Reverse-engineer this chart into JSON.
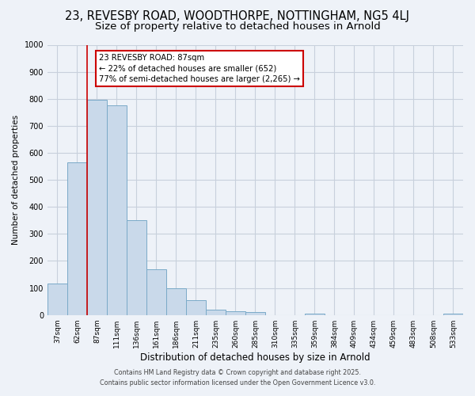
{
  "title": "23, REVESBY ROAD, WOODTHORPE, NOTTINGHAM, NG5 4LJ",
  "subtitle": "Size of property relative to detached houses in Arnold",
  "xlabel": "Distribution of detached houses by size in Arnold",
  "ylabel": "Number of detached properties",
  "bar_labels": [
    "37sqm",
    "62sqm",
    "87sqm",
    "111sqm",
    "136sqm",
    "161sqm",
    "186sqm",
    "211sqm",
    "235sqm",
    "260sqm",
    "285sqm",
    "310sqm",
    "335sqm",
    "359sqm",
    "384sqm",
    "409sqm",
    "434sqm",
    "459sqm",
    "483sqm",
    "508sqm",
    "533sqm"
  ],
  "bar_values": [
    115,
    565,
    795,
    775,
    350,
    170,
    100,
    55,
    20,
    15,
    10,
    0,
    0,
    5,
    0,
    0,
    0,
    0,
    0,
    0,
    5
  ],
  "bar_color": "#c9d9ea",
  "bar_edge_color": "#7aaac8",
  "vline_color": "#cc0000",
  "annotation_box_text": "23 REVESBY ROAD: 87sqm\n← 22% of detached houses are smaller (652)\n77% of semi-detached houses are larger (2,265) →",
  "annotation_box_color": "#cc0000",
  "annotation_box_bg": "#ffffff",
  "ylim": [
    0,
    1000
  ],
  "yticks": [
    0,
    100,
    200,
    300,
    400,
    500,
    600,
    700,
    800,
    900,
    1000
  ],
  "bg_color": "#eef2f8",
  "plot_bg_color": "#eef2f8",
  "grid_color": "#c8d0dc",
  "footer1": "Contains HM Land Registry data © Crown copyright and database right 2025.",
  "footer2": "Contains public sector information licensed under the Open Government Licence v3.0.",
  "title_fontsize": 10.5,
  "subtitle_fontsize": 9.5
}
